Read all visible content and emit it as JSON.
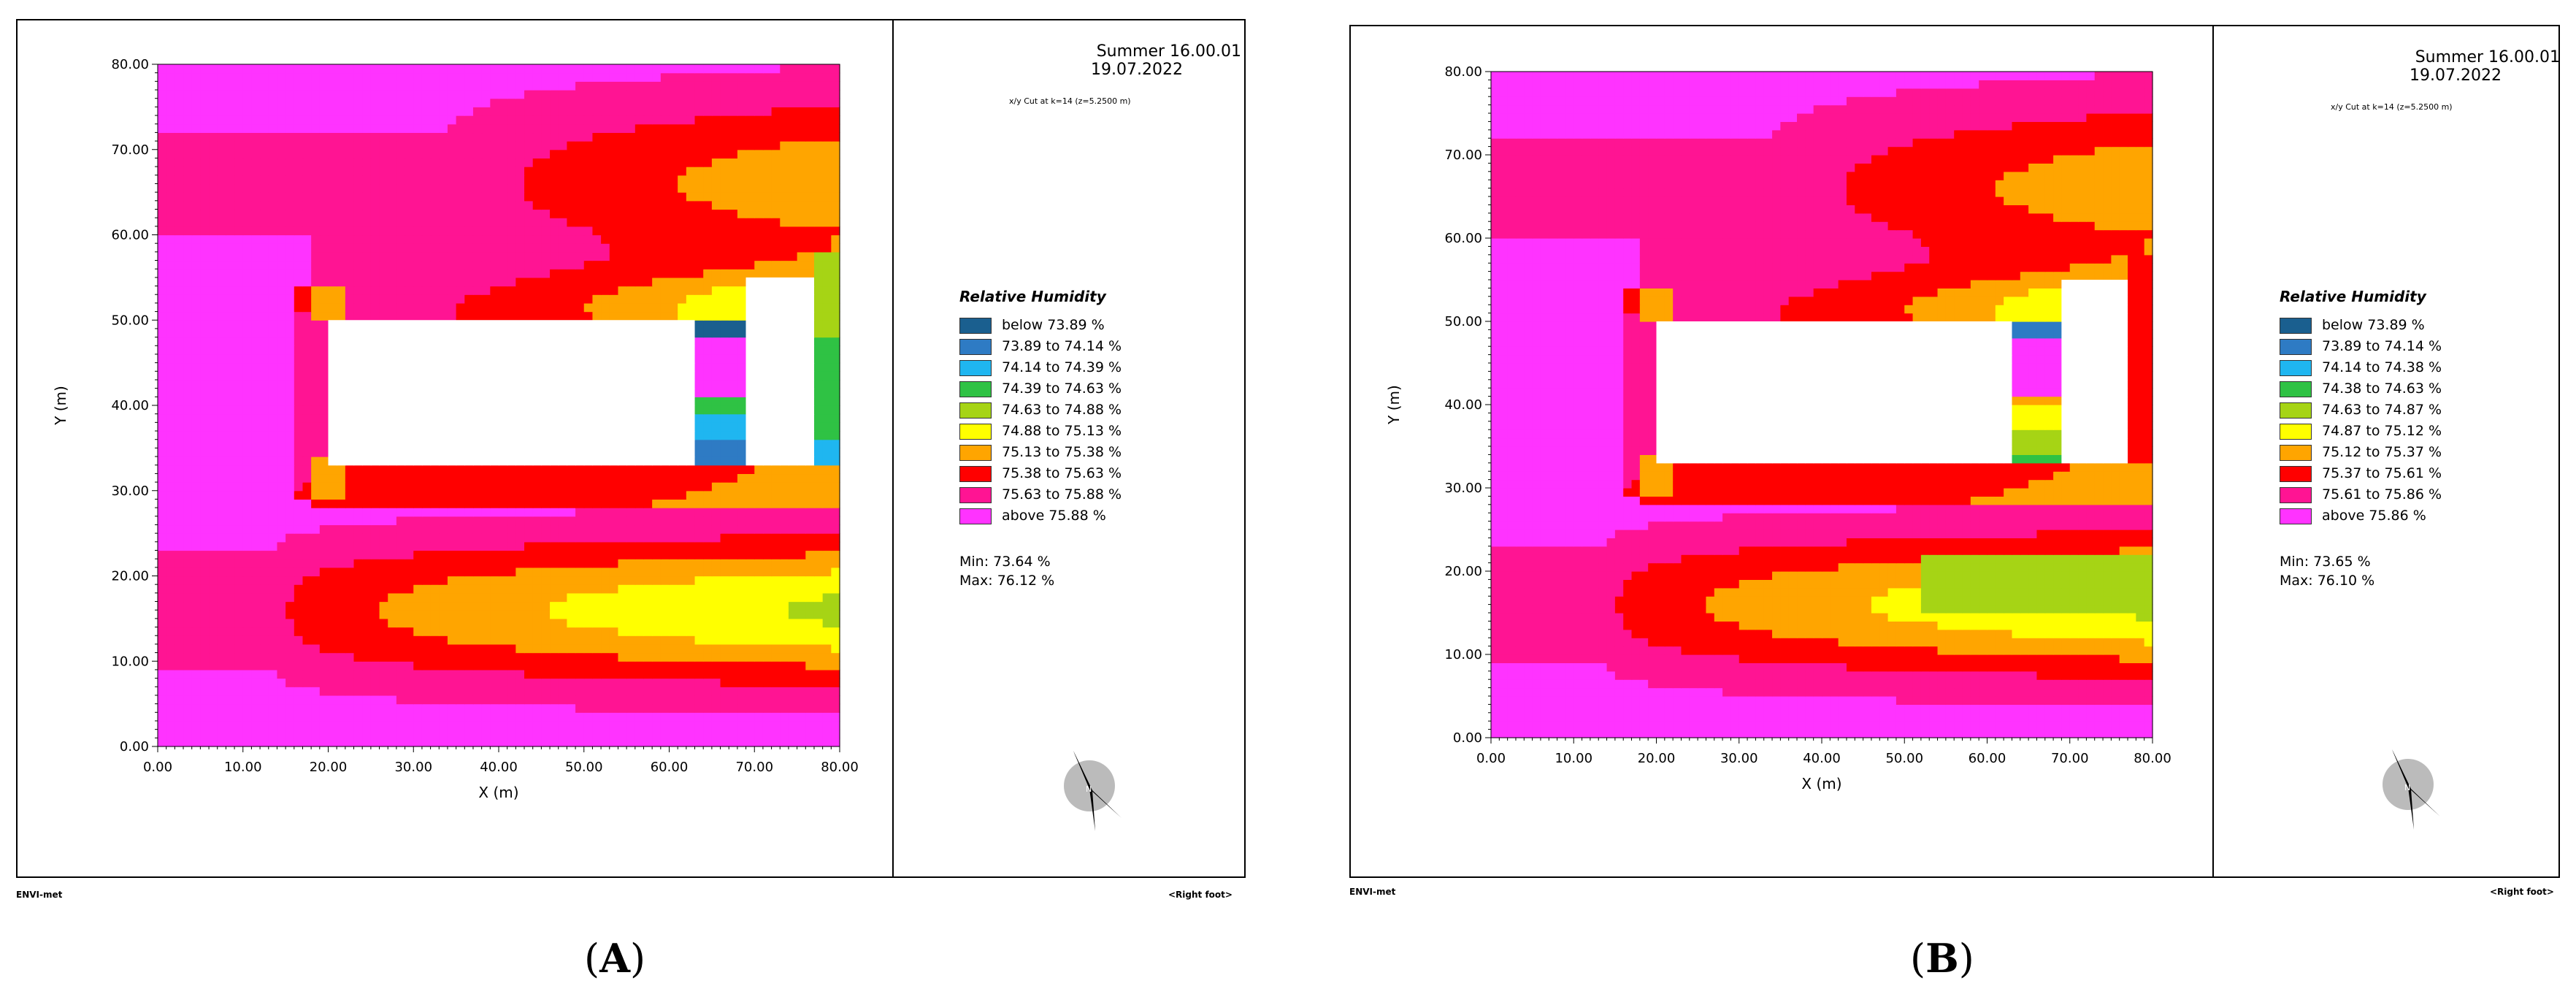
{
  "colors": {
    "bins": [
      "#1a5f8f",
      "#2e7bc4",
      "#1fb6f0",
      "#2fc244",
      "#a6d415",
      "#ffff00",
      "#ffa500",
      "#ff0000",
      "#ff1493",
      "#ff33ff"
    ],
    "building": "#ffffff",
    "border": "#000000"
  },
  "panels": [
    {
      "label": "A",
      "header": {
        "title": "Summer 16.00.01",
        "date": "19.07.2022",
        "subtitle": "x/y Cut at k=14 (z=5.2500 m)"
      },
      "footer": {
        "left": "ENVI-met",
        "right": "<Right foot>"
      },
      "legend": {
        "title": "Relative Humidity",
        "items": [
          "below 73.89 %",
          "73.89 to 74.14 %",
          "74.14 to 74.39 %",
          "74.39 to 74.63 %",
          "74.63 to 74.88 %",
          "74.88 to 75.13 %",
          "75.13 to 75.38 %",
          "75.38 to 75.63 %",
          "75.63 to 75.88 %",
          "above 75.88 %"
        ],
        "min": "Min: 73.64 %",
        "max": "Max: 76.12 %"
      },
      "chart_data": {
        "type": "heatmap",
        "xlabel": "X (m)",
        "ylabel": "Y (m)",
        "xlim": [
          0,
          80
        ],
        "ylim": [
          0,
          80
        ],
        "x_ticks": [
          "0.00",
          "10.00",
          "20.00",
          "30.00",
          "40.00",
          "50.00",
          "60.00",
          "70.00",
          "80.00"
        ],
        "y_ticks": [
          "0.00",
          "10.00",
          "20.00",
          "30.00",
          "40.00",
          "50.00",
          "60.00",
          "70.00",
          "80.00"
        ],
        "unit": "%",
        "min": 73.64,
        "max": 76.12,
        "buildings": [
          {
            "x": [
              20,
              63
            ],
            "y": [
              33,
              50
            ]
          },
          {
            "x": [
              69,
              77
            ],
            "y": [
              33,
              55
            ]
          }
        ]
      }
    },
    {
      "label": "B",
      "header": {
        "title": "Summer 16.00.01",
        "date": "19.07.2022",
        "subtitle": "x/y Cut at k=14 (z=5.2500 m)"
      },
      "footer": {
        "left": "ENVI-met",
        "right": "<Right foot>"
      },
      "legend": {
        "title": "Relative Humidity",
        "items": [
          "below 73.89 %",
          "73.89 to 74.14 %",
          "74.14 to 74.38 %",
          "74.38 to 74.63 %",
          "74.63 to 74.87 %",
          "74.87 to 75.12 %",
          "75.12 to 75.37 %",
          "75.37 to 75.61 %",
          "75.61 to 75.86 %",
          "above 75.86 %"
        ],
        "min": "Min: 73.65 %",
        "max": "Max: 76.10 %"
      },
      "chart_data": {
        "type": "heatmap",
        "xlabel": "X (m)",
        "ylabel": "Y (m)",
        "xlim": [
          0,
          80
        ],
        "ylim": [
          0,
          80
        ],
        "x_ticks": [
          "0.00",
          "10.00",
          "20.00",
          "30.00",
          "40.00",
          "50.00",
          "60.00",
          "70.00",
          "80.00"
        ],
        "y_ticks": [
          "0.00",
          "10.00",
          "20.00",
          "30.00",
          "40.00",
          "50.00",
          "60.00",
          "70.00",
          "80.00"
        ],
        "unit": "%",
        "min": 73.65,
        "max": 76.1,
        "buildings": [
          {
            "x": [
              20,
              63
            ],
            "y": [
              33,
              50
            ]
          },
          {
            "x": [
              69,
              77
            ],
            "y": [
              33,
              55
            ]
          }
        ]
      }
    }
  ]
}
